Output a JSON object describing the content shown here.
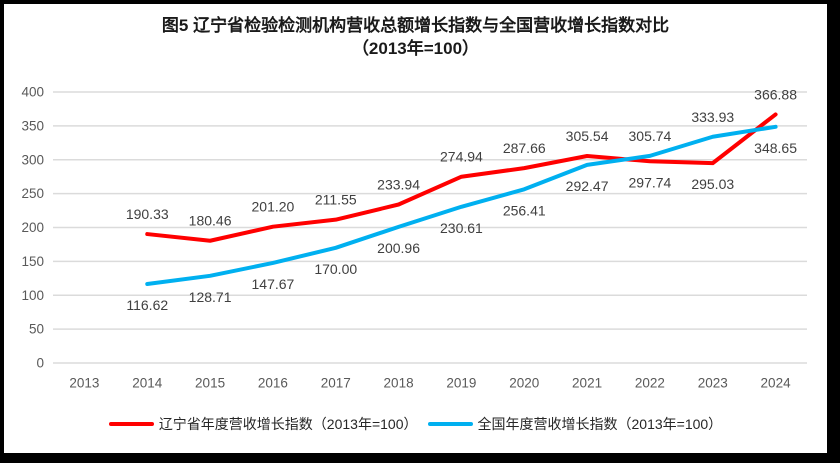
{
  "title": {
    "line1": "图5  辽宁省检验检测机构营收总额增长指数与全国营收增长指数对比",
    "line2": "（2013年=100）"
  },
  "chart_data": {
    "type": "line",
    "title": "图5 辽宁省检验检测机构营收总额增长指数与全国营收增长指数对比（2013年=100）",
    "categories": [
      "2013",
      "2014",
      "2015",
      "2016",
      "2017",
      "2018",
      "2019",
      "2020",
      "2021",
      "2022",
      "2023",
      "2024"
    ],
    "series": [
      {
        "name": "辽宁省年度营收增长指数（2013年=100）",
        "color": "#FF0000",
        "values": [
          null,
          190.33,
          180.46,
          201.2,
          211.55,
          233.94,
          274.94,
          287.66,
          305.54,
          297.74,
          295.03,
          366.88
        ],
        "labels": [
          null,
          "190.33",
          "180.46",
          "201.20",
          "211.55",
          "233.94",
          "274.94",
          "287.66",
          "305.54",
          "297.74",
          "295.03",
          "366.88"
        ],
        "label_sides": [
          null,
          "above",
          "above",
          "above",
          "above",
          "above",
          "above",
          "above",
          "above",
          "below",
          "below",
          "above"
        ]
      },
      {
        "name": "全国年度营收增长指数（2013年=100）",
        "color": "#00B0F0",
        "values": [
          null,
          116.62,
          128.71,
          147.67,
          170.0,
          200.96,
          230.61,
          256.41,
          292.47,
          305.74,
          333.93,
          348.65
        ],
        "labels": [
          null,
          "116.62",
          "128.71",
          "147.67",
          "170.00",
          "200.96",
          "230.61",
          "256.41",
          "292.47",
          "305.74",
          "333.93",
          "348.65"
        ],
        "label_sides": [
          null,
          "below",
          "below",
          "below",
          "below",
          "below",
          "below",
          "below",
          "below",
          "above",
          "above",
          "below"
        ]
      }
    ],
    "ylim": [
      0,
      400
    ],
    "yticks": [
      0,
      50,
      100,
      150,
      200,
      250,
      300,
      350,
      400
    ],
    "grid": true,
    "legend_position": "bottom",
    "colors": {
      "gridline": "#DBDBDB",
      "tick_label": "#595959",
      "data_label": "#404040"
    }
  }
}
